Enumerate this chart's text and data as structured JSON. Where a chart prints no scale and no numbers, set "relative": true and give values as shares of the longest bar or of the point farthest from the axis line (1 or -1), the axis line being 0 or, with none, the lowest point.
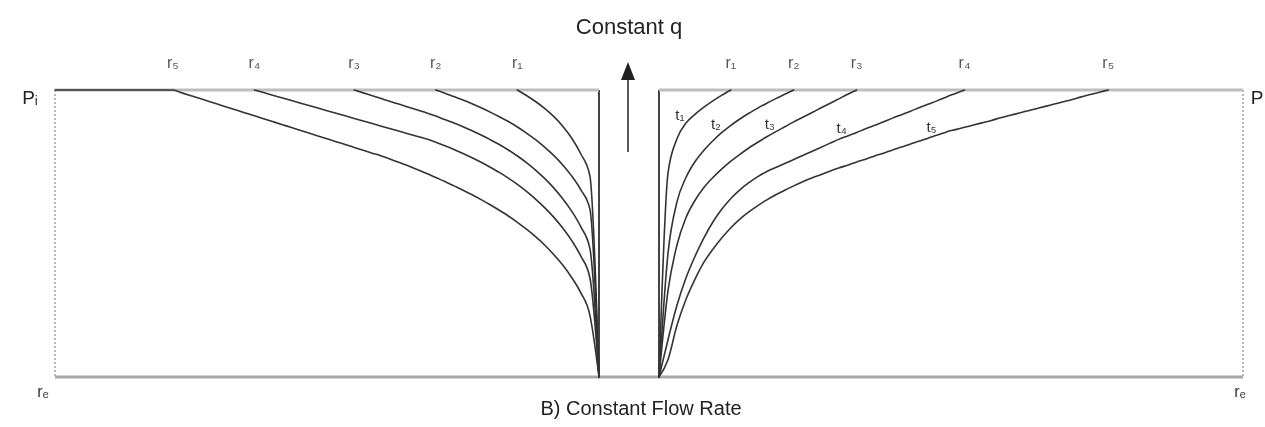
{
  "chart_data": [
    {
      "type": "line",
      "relative": true,
      "title": "Constant q",
      "xlabel": "rₑ",
      "ylabel": "Pᵢ",
      "annotations": [
        "B)  Constant Flow Rate"
      ],
      "categories": [
        null,
        null,
        null,
        null,
        null,
        null,
        null,
        null,
        null,
        null,
        null,
        null,
        null,
        "r₅",
        null,
        null,
        null,
        null,
        null,
        null,
        null,
        null,
        "r₄",
        null,
        null,
        null,
        null,
        null,
        null,
        null,
        null,
        null,
        null,
        "r₃",
        null,
        null,
        null,
        null,
        null,
        null,
        null,
        null,
        "r₂",
        null,
        null,
        null,
        null,
        null,
        null,
        null,
        null,
        "r₁",
        null,
        null,
        null,
        null,
        null,
        null,
        null,
        null,
        null
      ],
      "series": [
        {
          "color": "#333333",
          "values": [
            null,
            null,
            null,
            null,
            null,
            null,
            null,
            null,
            null,
            null,
            null,
            null,
            null,
            null,
            null,
            null,
            null,
            null,
            null,
            null,
            null,
            null,
            null,
            null,
            null,
            null,
            null,
            null,
            null,
            null,
            null,
            null,
            null,
            null,
            null,
            null,
            null,
            null,
            null,
            null,
            null,
            null,
            null,
            null,
            null,
            null,
            null,
            null,
            null,
            null,
            null,
            1,
            0.981,
            0.96,
            0.936,
            0.908,
            0.874,
            0.832,
            0.777,
            0.7,
            0
          ]
        },
        {
          "color": "#333333",
          "values": [
            null,
            null,
            null,
            null,
            null,
            null,
            null,
            null,
            null,
            null,
            null,
            null,
            null,
            null,
            null,
            null,
            null,
            null,
            null,
            null,
            null,
            null,
            null,
            null,
            null,
            null,
            null,
            null,
            null,
            null,
            null,
            null,
            null,
            null,
            null,
            null,
            null,
            null,
            null,
            null,
            null,
            null,
            1,
            0.989,
            0.977,
            0.965,
            0.952,
            0.938,
            0.923,
            0.907,
            0.89,
            0.871,
            0.85,
            0.827,
            0.801,
            0.772,
            0.739,
            0.7,
            0.652,
            0.585,
            0
          ]
        },
        {
          "color": "#333333",
          "values": [
            null,
            null,
            null,
            null,
            null,
            null,
            null,
            null,
            null,
            null,
            null,
            null,
            null,
            null,
            null,
            null,
            null,
            null,
            null,
            null,
            null,
            null,
            null,
            null,
            null,
            null,
            null,
            null,
            null,
            null,
            null,
            null,
            null,
            1,
            0.99,
            0.98,
            0.97,
            0.96,
            0.95,
            0.94,
            0.93,
            0.92,
            0.909,
            0.897,
            0.885,
            0.872,
            0.858,
            0.843,
            0.827,
            0.81,
            0.791,
            0.77,
            0.747,
            0.721,
            0.692,
            0.659,
            0.621,
            0.577,
            0.523,
            0.447,
            0
          ]
        },
        {
          "color": "#333333",
          "values": [
            null,
            null,
            null,
            null,
            null,
            null,
            null,
            null,
            null,
            null,
            null,
            null,
            null,
            null,
            null,
            null,
            null,
            null,
            null,
            null,
            null,
            null,
            1,
            0.991,
            0.982,
            0.973,
            0.964,
            0.955,
            0.946,
            0.937,
            0.928,
            0.919,
            0.91,
            0.901,
            0.892,
            0.883,
            0.874,
            0.865,
            0.856,
            0.847,
            0.838,
            0.829,
            0.818,
            0.806,
            0.793,
            0.779,
            0.764,
            0.748,
            0.731,
            0.713,
            0.693,
            0.671,
            0.647,
            0.62,
            0.59,
            0.557,
            0.519,
            0.475,
            0.421,
            0.345,
            0
          ]
        },
        {
          "color": "#333333",
          "values": [
            1,
            1,
            1,
            1,
            1,
            1,
            1,
            1,
            1,
            1,
            1,
            1,
            1,
            1,
            0.99,
            0.98,
            0.97,
            0.96,
            0.95,
            0.94,
            0.93,
            0.92,
            0.91,
            0.9,
            0.89,
            0.88,
            0.87,
            0.86,
            0.85,
            0.84,
            0.83,
            0.82,
            0.81,
            0.8,
            0.79,
            0.78,
            0.77,
            0.759,
            0.747,
            0.735,
            0.722,
            0.709,
            0.695,
            0.681,
            0.666,
            0.651,
            0.635,
            0.618,
            0.6,
            0.581,
            0.561,
            0.539,
            0.515,
            0.489,
            0.46,
            0.427,
            0.39,
            0.346,
            0.293,
            0.215,
            0
          ]
        }
      ]
    },
    {
      "type": "line",
      "relative": true,
      "xlabel": "rₑ",
      "ylabel": "P",
      "categories": [
        null,
        null,
        null,
        null,
        null,
        null,
        null,
        null,
        "r₁",
        null,
        null,
        null,
        null,
        null,
        null,
        "r₂",
        null,
        null,
        null,
        null,
        null,
        null,
        "r₃",
        null,
        null,
        null,
        null,
        null,
        null,
        null,
        null,
        null,
        null,
        null,
        "r₄",
        null,
        null,
        null,
        null,
        null,
        null,
        null,
        null,
        null,
        null,
        null,
        null,
        null,
        null,
        null,
        "r₅",
        null,
        null,
        null,
        null,
        null,
        null,
        null,
        null,
        null,
        null,
        null,
        null,
        null,
        null,
        null
      ],
      "series": [
        {
          "name": "t₁",
          "color": "#333333",
          "values": [
            0,
            0.71,
            0.83,
            0.885,
            0.915,
            0.94,
            0.962,
            0.982,
            1,
            null,
            null,
            null,
            null,
            null,
            null,
            null,
            null,
            null,
            null,
            null,
            null,
            null,
            null,
            null,
            null,
            null,
            null,
            null,
            null,
            null,
            null,
            null,
            null,
            null,
            null,
            null,
            null,
            null,
            null,
            null,
            null,
            null,
            null,
            null,
            null,
            null,
            null,
            null,
            null,
            null,
            null,
            null,
            null,
            null,
            null,
            null,
            null,
            null,
            null,
            null,
            null,
            null,
            null,
            null,
            null,
            null
          ]
        },
        {
          "name": "t₂",
          "color": "#333333",
          "values": [
            0,
            0.43,
            0.61,
            0.695,
            0.75,
            0.79,
            0.823,
            0.852,
            0.877,
            0.899,
            0.919,
            0.937,
            0.954,
            0.97,
            0.985,
            1,
            null,
            null,
            null,
            null,
            null,
            null,
            null,
            null,
            null,
            null,
            null,
            null,
            null,
            null,
            null,
            null,
            null,
            null,
            null,
            null,
            null,
            null,
            null,
            null,
            null,
            null,
            null,
            null,
            null,
            null,
            null,
            null,
            null,
            null,
            null,
            null,
            null,
            null,
            null,
            null,
            null,
            null,
            null,
            null,
            null,
            null,
            null,
            null,
            null,
            null
          ]
        },
        {
          "name": "t₃",
          "color": "#333333",
          "values": [
            0,
            0.3,
            0.46,
            0.555,
            0.615,
            0.66,
            0.695,
            0.725,
            0.752,
            0.776,
            0.798,
            0.818,
            0.837,
            0.855,
            0.872,
            0.889,
            0.905,
            0.921,
            0.937,
            0.953,
            0.969,
            0.985,
            1,
            null,
            null,
            null,
            null,
            null,
            null,
            null,
            null,
            null,
            null,
            null,
            null,
            null,
            null,
            null,
            null,
            null,
            null,
            null,
            null,
            null,
            null,
            null,
            null,
            null,
            null,
            null,
            null,
            null,
            null,
            null,
            null,
            null,
            null,
            null,
            null,
            null,
            null,
            null,
            null,
            null,
            null,
            null
          ]
        },
        {
          "name": "t₄",
          "color": "#333333",
          "values": [
            0,
            0.13,
            0.25,
            0.345,
            0.42,
            0.485,
            0.54,
            0.585,
            0.622,
            0.652,
            0.677,
            0.698,
            0.716,
            0.73,
            0.744,
            0.758,
            0.772,
            0.786,
            0.8,
            0.814,
            0.828,
            0.84,
            0.852,
            0.865,
            0.877,
            0.889,
            0.902,
            0.914,
            0.926,
            0.939,
            0.951,
            0.963,
            0.976,
            0.988,
            1,
            null,
            null,
            null,
            null,
            null,
            null,
            null,
            null,
            null,
            null,
            null,
            null,
            null,
            null,
            null,
            null,
            null,
            null,
            null,
            null,
            null,
            null,
            null,
            null,
            null,
            null,
            null,
            null,
            null,
            null,
            null
          ]
        },
        {
          "name": "t₅",
          "color": "#333333",
          "values": [
            0,
            0.06,
            0.18,
            0.27,
            0.34,
            0.4,
            0.445,
            0.485,
            0.52,
            0.55,
            0.575,
            0.597,
            0.617,
            0.635,
            0.651,
            0.666,
            0.68,
            0.693,
            0.705,
            0.717,
            0.728,
            0.738,
            0.749,
            0.759,
            0.77,
            0.78,
            0.791,
            0.801,
            0.812,
            0.822,
            0.833,
            0.843,
            0.854,
            0.862,
            0.87,
            0.878,
            0.886,
            0.894,
            0.903,
            0.911,
            0.919,
            0.927,
            0.935,
            0.943,
            0.951,
            0.959,
            0.967,
            0.976,
            0.984,
            0.992,
            1,
            null,
            null,
            null,
            null,
            null,
            null,
            null,
            null,
            null,
            null,
            null,
            null,
            null,
            null,
            null
          ]
        }
      ]
    }
  ]
}
